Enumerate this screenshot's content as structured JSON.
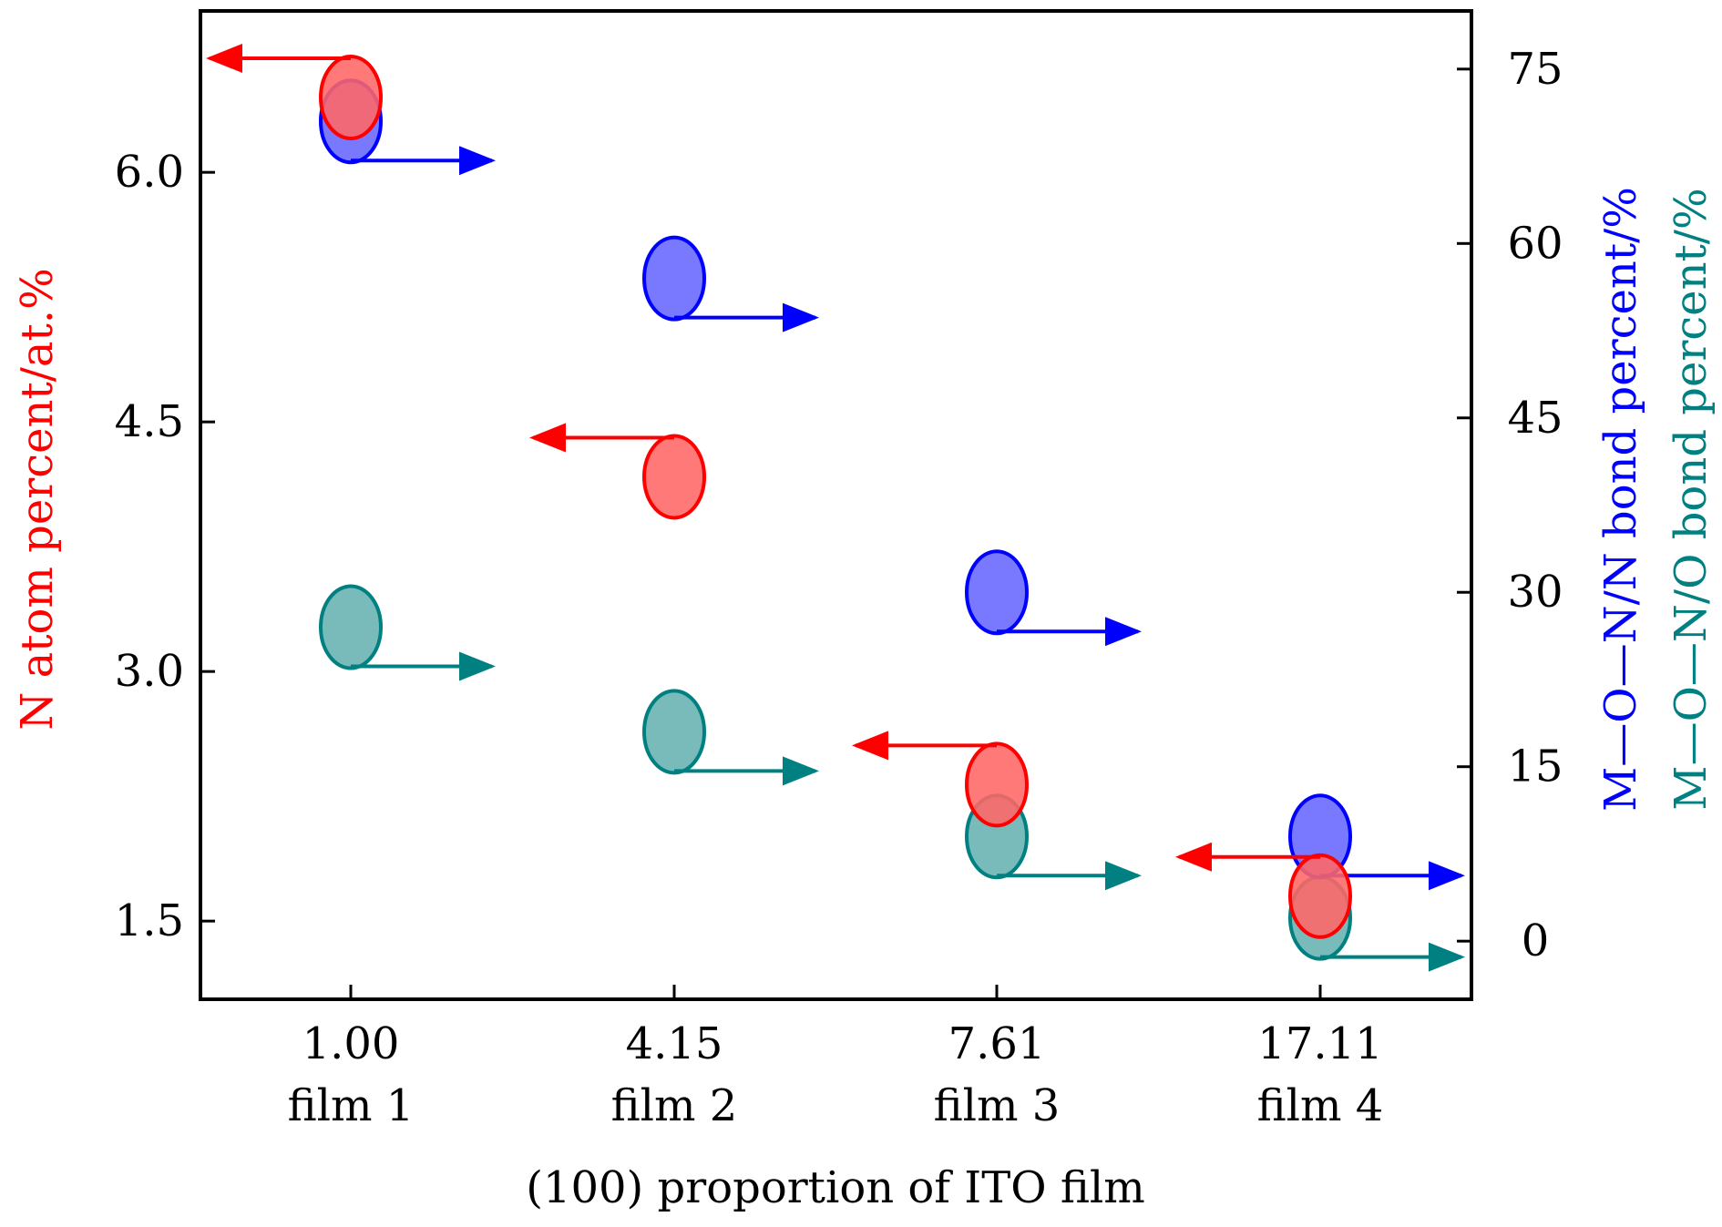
{
  "chart_data": {
    "type": "scatter",
    "title": "",
    "xlabel": "(100) proportion of ITO film",
    "x_ticks": [
      {
        "value": "1.00",
        "film": "film 1"
      },
      {
        "value": "4.15",
        "film": "film 2"
      },
      {
        "value": "7.61",
        "film": "film 3"
      },
      {
        "value": "17.11",
        "film": "film 4"
      }
    ],
    "y_left": {
      "label": "N atom percent/at.%",
      "color": "#ff0000",
      "range": [
        1.03,
        6.97
      ],
      "ticks": [
        "1.5",
        "3.0",
        "4.5",
        "6.0"
      ]
    },
    "y_right": {
      "label_blue": "M—O—N/N bond percent/%",
      "label_teal": "M—O—N/O bond percent/%",
      "color_blue": "#0000ff",
      "color_teal": "#008080",
      "range": [
        -5,
        80
      ],
      "ticks": [
        "0",
        "15",
        "30",
        "45",
        "60",
        "75"
      ]
    },
    "series": [
      {
        "name": "N atom percent",
        "axis": "left",
        "color": "#ff0000",
        "fill": "#ff6666",
        "arrow": "left",
        "values": [
          6.45,
          4.17,
          2.32,
          1.65
        ]
      },
      {
        "name": "M—O—N/N bond percent",
        "axis": "right",
        "color": "#0000ff",
        "fill": "#6666ff",
        "arrow": "right",
        "values": [
          70.5,
          57,
          30,
          9
        ]
      },
      {
        "name": "M—O—N/O bond percent",
        "axis": "right",
        "color": "#008080",
        "fill": "#66b2b2",
        "arrow": "right",
        "values": [
          27,
          18,
          9,
          2
        ]
      }
    ],
    "grid": false,
    "legend": "none"
  }
}
